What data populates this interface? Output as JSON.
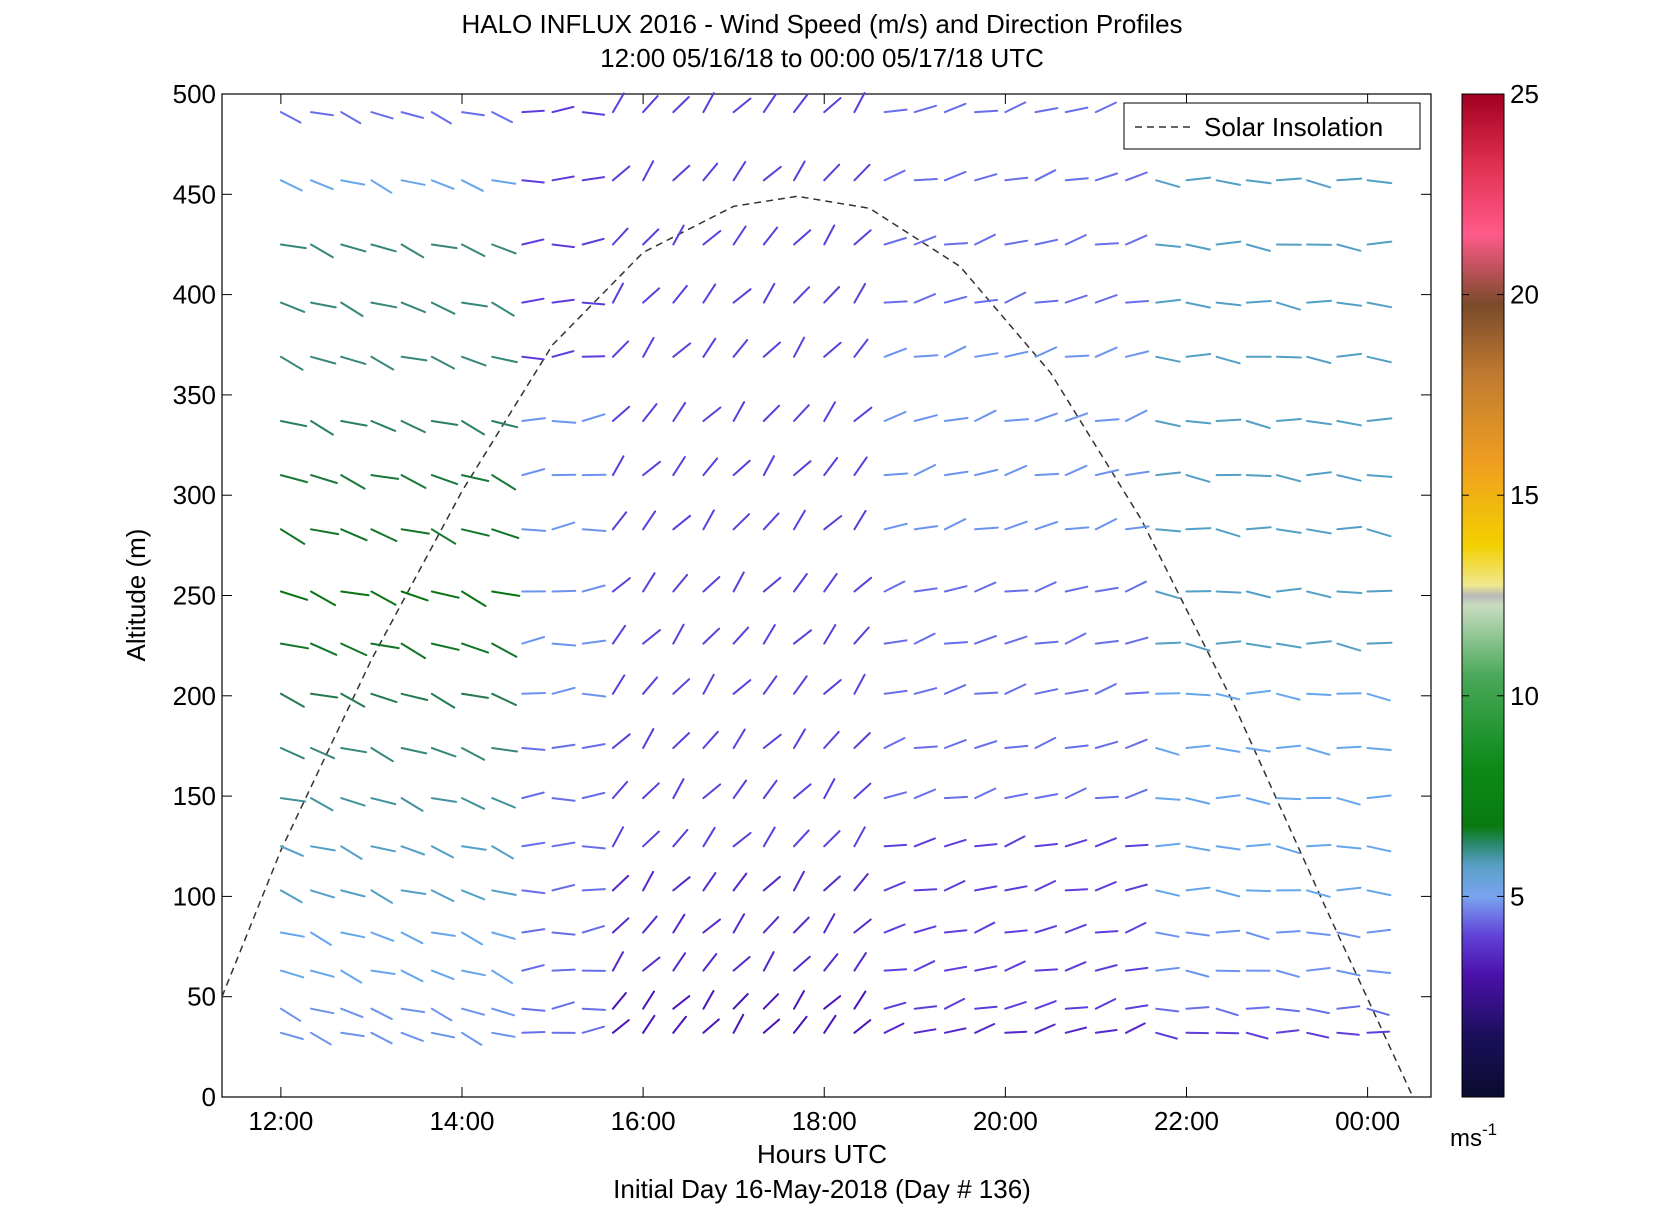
{
  "chart_data": {
    "type": "wind_barb_profile",
    "title": "HALO INFLUX 2016 - Wind Speed (m/s) and Direction Profiles",
    "subtitle": "12:00 05/16/18 to 00:00 05/17/18  UTC",
    "xlabel": "Hours UTC",
    "xlabel_sub": "Initial Day 16-May-2018 (Day # 136)",
    "ylabel": "Altitude (m)",
    "xlim": [
      11.35,
      24.7
    ],
    "ylim": [
      0,
      500
    ],
    "x_ticks": [
      12,
      14,
      16,
      18,
      20,
      22,
      24
    ],
    "x_tick_labels": [
      "12:00",
      "14:00",
      "16:00",
      "18:00",
      "20:00",
      "22:00",
      "00:00"
    ],
    "y_ticks": [
      0,
      50,
      100,
      150,
      200,
      250,
      300,
      350,
      400,
      450,
      500
    ],
    "y_tick_labels": [
      "0",
      "50",
      "100",
      "150",
      "200",
      "250",
      "300",
      "350",
      "400",
      "450",
      "500"
    ],
    "legend": {
      "position": "top-right",
      "entries": [
        "Solar Insolation"
      ]
    },
    "colorbar": {
      "range": [
        0,
        25
      ],
      "ticks": [
        5,
        10,
        15,
        20,
        25
      ],
      "tick_labels": [
        "5",
        "10",
        "15",
        "20",
        "25"
      ],
      "unit_base": "ms",
      "unit_exp": "-1"
    },
    "solar_insolation": {
      "style": "dashed",
      "color": "#333333",
      "x": [
        11.35,
        12,
        13,
        14,
        15,
        16,
        17,
        17.7,
        18.5,
        19.5,
        20.5,
        21.5,
        22.5,
        23.5,
        24.5
      ],
      "y": [
        50,
        123,
        218,
        302,
        375,
        421,
        444,
        449,
        443,
        414,
        361,
        288,
        198,
        98,
        0
      ]
    },
    "vectors": {
      "time_step_hours": 0.3333,
      "first_time": 12.0,
      "last_time": 24.0,
      "gap_hours": [
        14.67,
        21.67
      ],
      "altitudes": [
        32,
        44,
        63,
        82,
        103,
        125,
        149,
        174,
        201,
        226,
        252,
        283,
        310,
        337,
        369,
        396,
        425,
        457,
        491
      ],
      "regimes": [
        {
          "x_range": [
            12.0,
            14.6
          ],
          "direction_deg": 290,
          "speed_by_altitude": [
            4,
            4,
            4.5,
            4.5,
            5,
            5,
            5.5,
            6,
            7,
            8,
            8.5,
            8,
            7.5,
            6.5,
            6,
            6,
            6,
            4.5,
            3.5
          ]
        },
        {
          "x_range": [
            14.6,
            15.6
          ],
          "direction_deg": 265,
          "speed_by_altitude": [
            3.5,
            3.5,
            3.5,
            3.5,
            3.5,
            3.5,
            3.5,
            3.5,
            4,
            4,
            4,
            4,
            4,
            4,
            3,
            3,
            3,
            3,
            3
          ]
        },
        {
          "x_range": [
            15.6,
            18.6
          ],
          "direction_deg": 220,
          "speed_by_altitude": [
            2,
            2,
            2.5,
            2.5,
            2.5,
            3,
            3,
            3,
            3,
            3,
            3,
            3,
            3,
            3,
            3,
            3,
            3,
            3,
            3
          ]
        },
        {
          "x_range": [
            18.6,
            21.6
          ],
          "direction_deg": 255,
          "speed_by_altitude": [
            2.5,
            3,
            3,
            3,
            3,
            3,
            3.5,
            3.5,
            3.5,
            3.5,
            3.5,
            4,
            4,
            4,
            4,
            3.5,
            3.5,
            3.5,
            3.5
          ]
        },
        {
          "x_range": [
            21.6,
            24.1
          ],
          "direction_deg": 275,
          "speed_by_altitude": [
            3,
            3.5,
            4,
            4,
            4.5,
            4.5,
            4.5,
            4.5,
            4.5,
            5,
            5,
            5,
            5,
            5,
            5,
            5,
            5,
            5,
            4
          ]
        }
      ]
    }
  }
}
